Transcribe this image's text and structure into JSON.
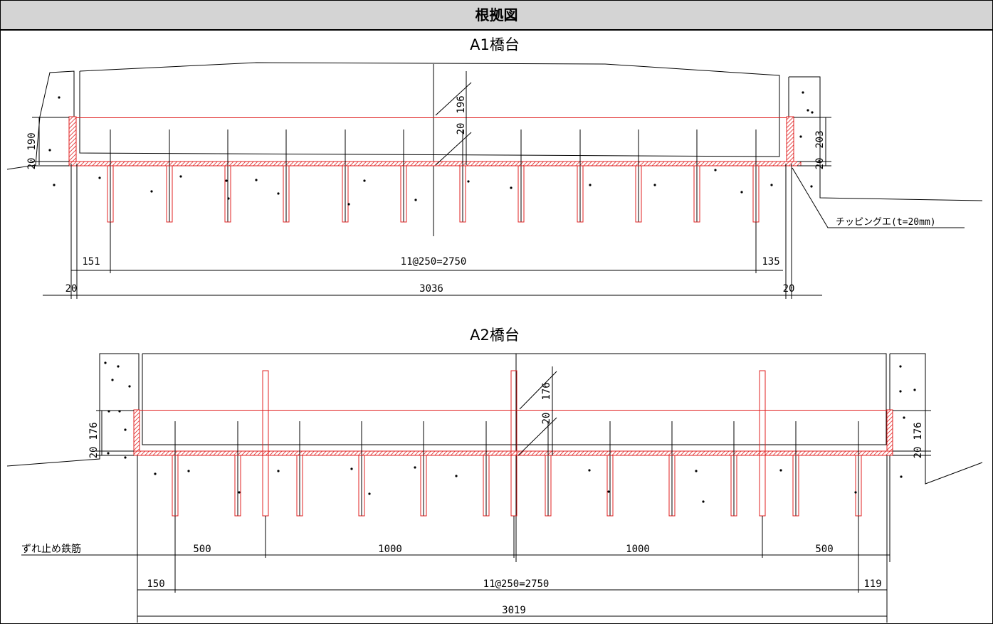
{
  "header": {
    "title": "根拠図"
  },
  "a1": {
    "title": "A1橋台",
    "dim_151": "151",
    "dim_span": "11@250=2750",
    "dim_135": "135",
    "dim_20_left": "20",
    "dim_total": "3036",
    "dim_20_right": "20",
    "dim_190": "190",
    "dim_20_v_left": "20",
    "dim_196": "196",
    "dim_20_v_mid": "20",
    "dim_203": "203",
    "dim_20_v_right": "20",
    "chipping_note": "チッピングエ(t=20mm)"
  },
  "a2": {
    "title": "A2橋台",
    "shear_bar_label": "ずれ止め鉄筋",
    "dim_500_left": "500",
    "dim_1000_left": "1000",
    "dim_1000_right": "1000",
    "dim_500_right": "500",
    "dim_150": "150",
    "dim_span": "11@250=2750",
    "dim_119": "119",
    "dim_total": "3019",
    "dim_176_left": "176",
    "dim_20_v_left": "20",
    "dim_176_mid": "176",
    "dim_20_v_mid": "20",
    "dim_176_right": "176",
    "dim_20_v_right": "20"
  },
  "colors": {
    "line": "#000000",
    "anchor": "#e02020",
    "chipping": "#e02020"
  }
}
